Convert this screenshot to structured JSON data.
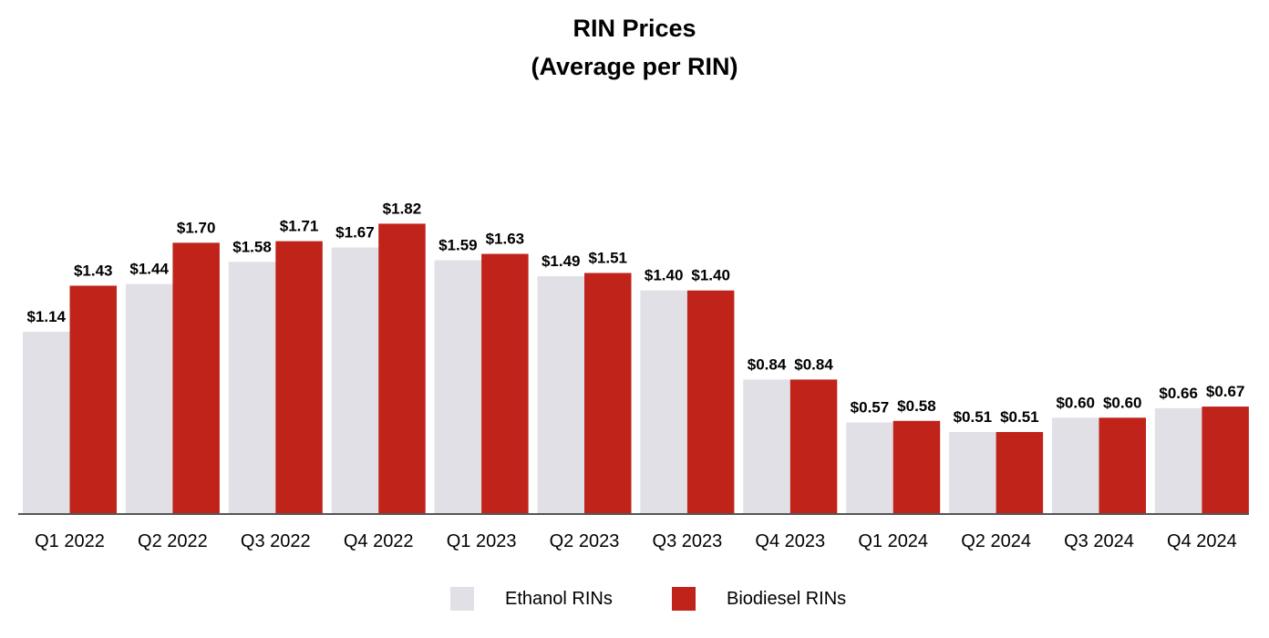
{
  "chart_data": {
    "type": "bar",
    "title": "RIN Prices",
    "subtitle": "(Average per RIN)",
    "categories": [
      "Q1 2022",
      "Q2 2022",
      "Q3 2022",
      "Q4 2022",
      "Q1 2023",
      "Q2 2023",
      "Q3 2023",
      "Q4 2023",
      "Q1 2024",
      "Q2 2024",
      "Q3 2024",
      "Q4 2024"
    ],
    "series": [
      {
        "name": "Ethanol RINs",
        "color": "#e0e0e6",
        "values": [
          1.14,
          1.44,
          1.58,
          1.67,
          1.59,
          1.49,
          1.4,
          0.84,
          0.57,
          0.51,
          0.6,
          0.66
        ],
        "labels": [
          "$1.14",
          "$1.44",
          "$1.58",
          "$1.67",
          "$1.59",
          "$1.49",
          "$1.40",
          "$0.84",
          "$0.57",
          "$0.51",
          "$0.60",
          "$0.66"
        ]
      },
      {
        "name": "Biodiesel RINs",
        "color": "#c0231a",
        "values": [
          1.43,
          1.7,
          1.71,
          1.82,
          1.63,
          1.51,
          1.4,
          0.84,
          0.58,
          0.51,
          0.6,
          0.67
        ],
        "labels": [
          "$1.43",
          "$1.70",
          "$1.71",
          "$1.82",
          "$1.63",
          "$1.51",
          "$1.40",
          "$0.84",
          "$0.58",
          "$0.51",
          "$0.60",
          "$0.67"
        ]
      }
    ],
    "ylim": [
      0,
      2.0
    ],
    "grid": false,
    "legend_position": "bottom"
  }
}
